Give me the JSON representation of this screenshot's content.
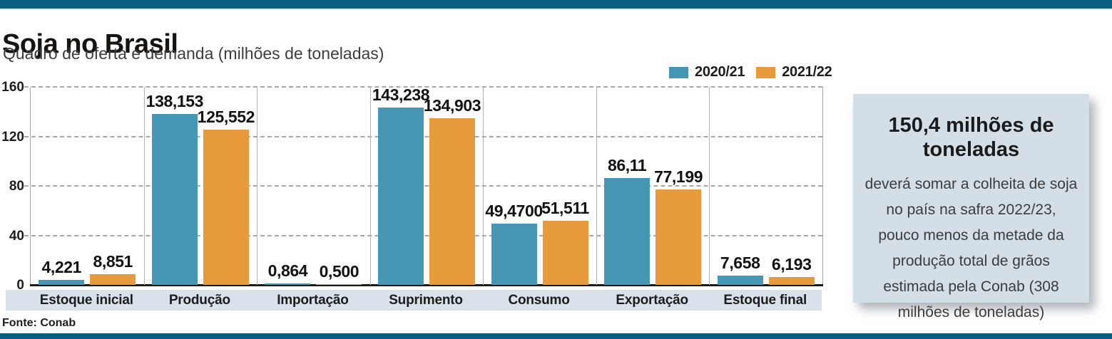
{
  "page": {
    "title": "Soja no Brasil",
    "subtitle": "Quadro de oferta e demanda (milhões de toneladas)",
    "source": "Fonte: Conab",
    "accent_color": "#0a5e80"
  },
  "chart_data": {
    "type": "bar",
    "title": "Soja no Brasil — Quadro de oferta e demanda",
    "unit": "milhões de toneladas",
    "categories": [
      "Estoque inicial",
      "Produção",
      "Importação",
      "Suprimento",
      "Consumo",
      "Exportação",
      "Estoque final"
    ],
    "series": [
      {
        "name": "2020/21",
        "color": "#4696b6",
        "values": [
          4.221,
          138.153,
          0.864,
          143.238,
          49.47,
          86.11,
          7.658
        ],
        "labels": [
          "4,221",
          "138,153",
          "0,864",
          "143,238",
          "49,4700",
          "86,11",
          "7,658"
        ]
      },
      {
        "name": "2021/22",
        "color": "#e89b3c",
        "values": [
          8.851,
          125.552,
          0.5,
          134.903,
          51.511,
          77.199,
          6.193
        ],
        "labels": [
          "8,851",
          "125,552",
          "0,500",
          "134,903",
          "51,511",
          "77,199",
          "6,193"
        ]
      }
    ],
    "ylim": [
      0,
      160
    ],
    "yticks": [
      0,
      40,
      80,
      120,
      160
    ],
    "grid": "horizontal-dashed",
    "legend_position": "top-right"
  },
  "infobox": {
    "heading": "150,4 milhões de toneladas",
    "body": "deverá somar a colheita de soja no país na safra 2022/23, pouco menos da metade da produção total de grãos estimada pela Conab (308 milhões de toneladas)",
    "background": "#d3dee6"
  }
}
